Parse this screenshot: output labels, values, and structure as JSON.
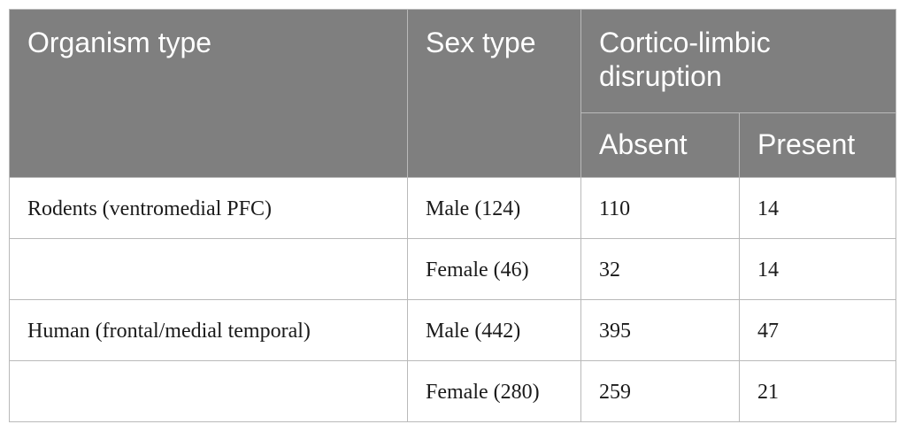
{
  "table": {
    "headers": {
      "organism_type": "Organism type",
      "sex_type": "Sex type",
      "cortico_limbic": "Cortico-limbic disruption",
      "absent": "Absent",
      "present": "Present"
    },
    "rows": [
      {
        "organism": "Rodents (ventromedial PFC)",
        "sex": "Male (124)",
        "absent": "110",
        "present": "14"
      },
      {
        "organism": "",
        "sex": "Female (46)",
        "absent": "32",
        "present": "14"
      },
      {
        "organism": "Human (frontal/medial temporal)",
        "sex": "Male (442)",
        "absent": "395",
        "present": "47"
      },
      {
        "organism": "",
        "sex": "Female (280)",
        "absent": "259",
        "present": "21"
      }
    ]
  }
}
